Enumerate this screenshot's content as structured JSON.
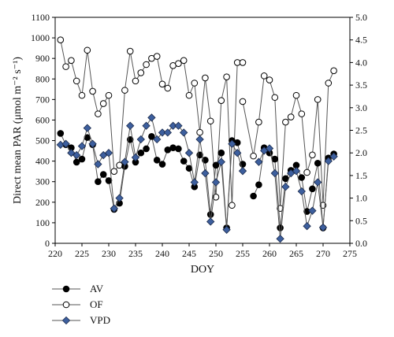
{
  "chart_data": {
    "type": "line",
    "xlabel": "DOY",
    "ylabel": "Direct mean PAR (μmol m⁻² s⁻¹)",
    "y2label": "",
    "xlim": [
      220,
      275
    ],
    "ylim": [
      0,
      1100
    ],
    "y2lim": [
      0.0,
      5.0
    ],
    "x_ticks": [
      220,
      225,
      230,
      235,
      240,
      245,
      250,
      255,
      260,
      265,
      270,
      275
    ],
    "y_ticks": [
      0,
      100,
      200,
      300,
      400,
      500,
      600,
      700,
      800,
      900,
      1000,
      1100
    ],
    "y2_ticks": [
      "0.0",
      "0.5",
      "1.0",
      "1.5",
      "2.0",
      "2.5",
      "3.0",
      "3.5",
      "4.0",
      "4.5",
      "5.0"
    ],
    "legend_position": "bottom-left",
    "series": [
      {
        "name": "AV",
        "axis": "left",
        "marker": "circle-filled",
        "color": "#000000",
        "segments": [
          {
            "x": [
              221,
              222,
              223,
              224,
              225,
              226,
              227,
              228,
              229,
              230,
              231,
              232,
              233,
              234,
              235,
              236,
              237,
              238,
              239,
              240,
              241,
              242,
              243,
              244,
              245,
              246,
              247,
              248,
              249,
              250,
              251,
              252,
              253,
              254,
              255
            ],
            "y": [
              535,
              480,
              465,
              395,
              410,
              515,
              480,
              300,
              335,
              305,
              165,
              195,
              375,
              505,
              395,
              440,
              460,
              520,
              405,
              385,
              455,
              465,
              460,
              400,
              365,
              275,
              430,
              405,
              140,
              380,
              440,
              75,
              500,
              490,
              385
            ]
          },
          {
            "x": [
              257,
              258,
              259,
              260,
              261,
              262,
              263,
              264,
              265,
              266,
              267,
              268,
              269,
              270,
              271,
              272
            ],
            "y": [
              230,
              285,
              465,
              440,
              410,
              75,
              315,
              355,
              380,
              320,
              155,
              265,
              390,
              75,
              415,
              435
            ]
          }
        ]
      },
      {
        "name": "OF",
        "axis": "left",
        "marker": "circle-open",
        "color": "#000000",
        "segments": [
          {
            "x": [
              221,
              222,
              223,
              224,
              225,
              226,
              227,
              228,
              229,
              230,
              231,
              232,
              233,
              234,
              235,
              236,
              237,
              238,
              239,
              240,
              241,
              242,
              243,
              244,
              245,
              246,
              247,
              248,
              249,
              250,
              251,
              252,
              253,
              254,
              255
            ],
            "y": [
              990,
              860,
              890,
              790,
              720,
              940,
              740,
              630,
              680,
              720,
              350,
              380,
              745,
              935,
              790,
              830,
              870,
              900,
              910,
              775,
              755,
              865,
              875,
              890,
              720,
              780,
              540,
              805,
              595,
              225,
              695,
              810,
              185,
              880,
              880
            ]
          },
          {
            "x": [
              255,
              257,
              258,
              259,
              260,
              261,
              262,
              263,
              264,
              265,
              266,
              267,
              268,
              269,
              270,
              271,
              272
            ],
            "y": [
              690,
              425,
              590,
              815,
              795,
              710,
              170,
              590,
              615,
              720,
              630,
              345,
              430,
              700,
              185,
              780,
              840
            ]
          }
        ]
      },
      {
        "name": "VPD",
        "axis": "right",
        "marker": "diamond",
        "color": "#3d5f9e",
        "segments": [
          {
            "x": [
              221,
              222,
              223,
              224,
              225,
              226,
              227,
              228,
              229,
              230,
              231,
              232,
              233,
              234,
              235,
              236,
              237,
              238,
              239,
              240,
              241,
              242,
              243,
              244,
              245,
              246,
              247,
              248,
              249,
              250,
              251,
              252,
              253,
              254,
              255
            ],
            "y": [
              2.18,
              2.2,
              2.0,
              1.95,
              2.15,
              2.55,
              2.2,
              1.75,
              1.95,
              2.0,
              0.77,
              1.0,
              1.8,
              2.6,
              1.9,
              2.3,
              2.6,
              2.78,
              2.3,
              2.45,
              2.45,
              2.6,
              2.6,
              2.45,
              2.0,
              1.35,
              2.3,
              1.55,
              0.48,
              1.35,
              1.8,
              0.3,
              2.2,
              2.0,
              1.6
            ]
          },
          {
            "x": [
              258,
              259,
              260,
              261,
              262,
              263,
              264,
              265,
              266,
              267,
              268,
              269,
              270,
              271,
              272
            ],
            "y": [
              1.8,
              2.05,
              2.1,
              1.55,
              0.1,
              1.25,
              1.55,
              1.6,
              1.15,
              0.38,
              0.72,
              1.35,
              0.35,
              1.82,
              1.92
            ]
          }
        ]
      }
    ]
  }
}
